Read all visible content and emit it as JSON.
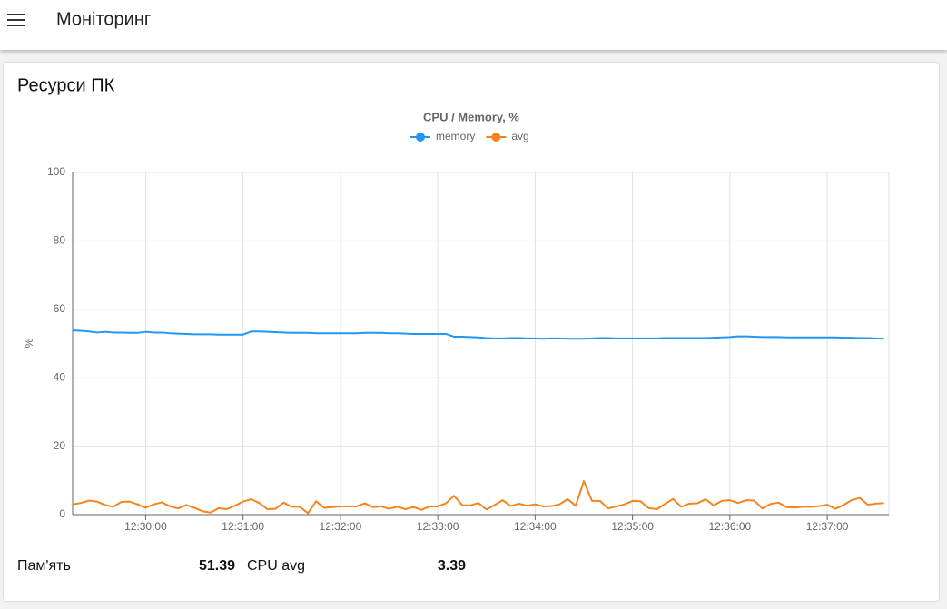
{
  "header": {
    "title": "Моніторинг"
  },
  "card": {
    "title": "Ресурси ПК"
  },
  "chart_data": {
    "type": "line",
    "title": "CPU / Memory, %",
    "y_label": "%",
    "x": [
      "12:29:15",
      "12:29:20",
      "12:29:25",
      "12:29:30",
      "12:29:35",
      "12:29:40",
      "12:29:45",
      "12:29:50",
      "12:29:55",
      "12:30:00",
      "12:30:05",
      "12:30:10",
      "12:30:15",
      "12:30:20",
      "12:30:25",
      "12:30:30",
      "12:30:35",
      "12:30:40",
      "12:30:45",
      "12:30:50",
      "12:30:55",
      "12:31:00",
      "12:31:05",
      "12:31:10",
      "12:31:15",
      "12:31:20",
      "12:31:25",
      "12:31:30",
      "12:31:35",
      "12:31:40",
      "12:31:45",
      "12:31:50",
      "12:31:55",
      "12:32:00",
      "12:32:05",
      "12:32:10",
      "12:32:15",
      "12:32:20",
      "12:32:25",
      "12:32:30",
      "12:32:35",
      "12:32:40",
      "12:32:45",
      "12:32:50",
      "12:32:55",
      "12:33:00",
      "12:33:05",
      "12:33:10",
      "12:33:15",
      "12:33:20",
      "12:33:25",
      "12:33:30",
      "12:33:35",
      "12:33:40",
      "12:33:45",
      "12:33:50",
      "12:33:55",
      "12:34:00",
      "12:34:05",
      "12:34:10",
      "12:34:15",
      "12:34:20",
      "12:34:25",
      "12:34:30",
      "12:34:35",
      "12:34:40",
      "12:34:45",
      "12:34:50",
      "12:34:55",
      "12:35:00",
      "12:35:05",
      "12:35:10",
      "12:35:15",
      "12:35:20",
      "12:35:25",
      "12:35:30",
      "12:35:35",
      "12:35:40",
      "12:35:45",
      "12:35:50",
      "12:35:55",
      "12:36:00",
      "12:36:05",
      "12:36:10",
      "12:36:15",
      "12:36:20",
      "12:36:25",
      "12:36:30",
      "12:36:35",
      "12:36:40",
      "12:36:45",
      "12:36:50",
      "12:36:55",
      "12:37:00",
      "12:37:05",
      "12:37:10",
      "12:37:15",
      "12:37:20",
      "12:37:25",
      "12:37:30",
      "12:37:35"
    ],
    "series": [
      {
        "name": "memory",
        "color": "#2196f3",
        "values": [
          53.8,
          53.7,
          53.5,
          53.2,
          53.4,
          53.2,
          53.2,
          53.1,
          53.1,
          53.4,
          53.2,
          53.2,
          53.0,
          52.9,
          52.8,
          52.7,
          52.7,
          52.7,
          52.6,
          52.6,
          52.6,
          52.6,
          53.5,
          53.5,
          53.4,
          53.3,
          53.2,
          53.1,
          53.1,
          53.1,
          53.0,
          53.0,
          53.0,
          53.0,
          53.0,
          53.0,
          53.1,
          53.1,
          53.1,
          53.0,
          53.0,
          52.9,
          52.8,
          52.8,
          52.8,
          52.8,
          52.8,
          52.0,
          52.0,
          51.9,
          51.8,
          51.6,
          51.5,
          51.5,
          51.6,
          51.6,
          51.5,
          51.5,
          51.4,
          51.5,
          51.5,
          51.4,
          51.4,
          51.4,
          51.5,
          51.6,
          51.6,
          51.5,
          51.5,
          51.5,
          51.5,
          51.5,
          51.5,
          51.6,
          51.6,
          51.6,
          51.6,
          51.6,
          51.6,
          51.7,
          51.8,
          51.9,
          52.1,
          52.1,
          52.0,
          51.9,
          51.9,
          51.9,
          51.8,
          51.8,
          51.8,
          51.8,
          51.8,
          51.8,
          51.8,
          51.7,
          51.7,
          51.6,
          51.6,
          51.5,
          51.39
        ]
      },
      {
        "name": "avg",
        "color": "#f5841f",
        "values": [
          3.0,
          3.4,
          4.1,
          3.8,
          2.8,
          2.3,
          3.7,
          3.8,
          3.0,
          2.0,
          3.0,
          3.6,
          2.4,
          1.8,
          2.8,
          2.0,
          1.0,
          0.6,
          1.9,
          1.6,
          2.6,
          3.8,
          4.5,
          3.4,
          1.6,
          1.7,
          3.5,
          2.3,
          2.3,
          0.4,
          3.9,
          2.0,
          2.2,
          2.4,
          2.4,
          2.4,
          3.3,
          2.2,
          2.4,
          1.7,
          2.3,
          1.6,
          2.2,
          1.4,
          2.4,
          2.4,
          3.3,
          5.5,
          2.8,
          2.7,
          3.4,
          1.5,
          2.8,
          4.2,
          2.5,
          3.2,
          2.6,
          3.0,
          2.4,
          2.5,
          3.0,
          4.5,
          2.6,
          9.8,
          4.0,
          4.0,
          1.8,
          2.4,
          3.0,
          4.0,
          3.9,
          1.9,
          1.6,
          3.1,
          4.6,
          2.3,
          3.2,
          3.3,
          4.5,
          2.7,
          4.0,
          4.2,
          3.4,
          4.2,
          4.1,
          1.8,
          3.1,
          3.5,
          2.2,
          2.1,
          2.3,
          2.3,
          2.5,
          2.9,
          1.7,
          2.8,
          4.2,
          4.9,
          2.9,
          3.2,
          3.39
        ]
      }
    ],
    "xlim": [
      "12:29:15",
      "12:37:38"
    ],
    "xticks": [
      "12:30:00",
      "12:31:00",
      "12:32:00",
      "12:33:00",
      "12:34:00",
      "12:35:00",
      "12:36:00",
      "12:37:00"
    ],
    "ylim": [
      0,
      100
    ],
    "yticks": [
      0,
      20,
      40,
      60,
      80,
      100
    ],
    "grid": true,
    "legend": "top"
  },
  "stats": [
    {
      "label": "Пам'ять",
      "value": 51.39
    },
    {
      "label": "CPU avg",
      "value": 3.39
    }
  ]
}
